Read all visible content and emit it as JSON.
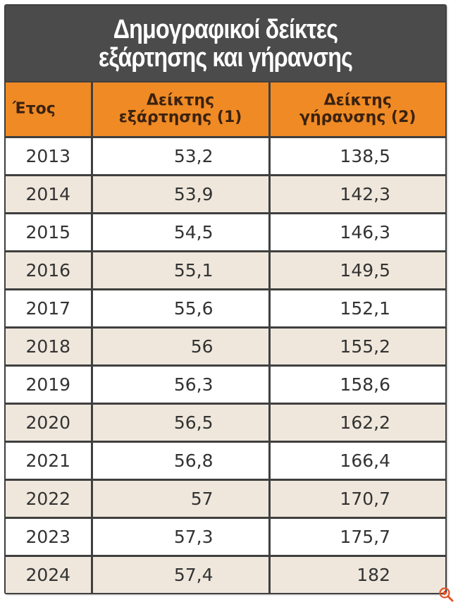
{
  "title": {
    "line1": "Δημογραφικοί δείκτες",
    "line2": "εξάρτησης και γήρανσης"
  },
  "table": {
    "headers": [
      "Έτος",
      "Δείκτης εξάρτησης (1)",
      "Δείκτης γήρανσης (2)"
    ],
    "header_lines": {
      "col2_line1": "Δείκτης",
      "col2_line2": "εξάρτησης (1)",
      "col3_line1": "Δείκτης",
      "col3_line2": "γήρανσης (2)"
    },
    "rows": [
      {
        "year": "2013",
        "dependency": "53,2",
        "ageing": "138,5"
      },
      {
        "year": "2014",
        "dependency": "53,9",
        "ageing": "142,3"
      },
      {
        "year": "2015",
        "dependency": "54,5",
        "ageing": "146,3"
      },
      {
        "year": "2016",
        "dependency": "55,1",
        "ageing": "149,5"
      },
      {
        "year": "2017",
        "dependency": "55,6",
        "ageing": "152,1"
      },
      {
        "year": "2018",
        "dependency": "56",
        "ageing": "155,2"
      },
      {
        "year": "2019",
        "dependency": "56,3",
        "ageing": "158,6"
      },
      {
        "year": "2020",
        "dependency": "56,5",
        "ageing": "162,2"
      },
      {
        "year": "2021",
        "dependency": "56,8",
        "ageing": "166,4"
      },
      {
        "year": "2022",
        "dependency": "57",
        "ageing": "170,7"
      },
      {
        "year": "2023",
        "dependency": "57,3",
        "ageing": "175,7"
      },
      {
        "year": "2024",
        "dependency": "57,4",
        "ageing": "182"
      }
    ]
  },
  "colors": {
    "title_bg": "#4b4b4b",
    "header_bg": "#f08a24",
    "row_alt_bg": "#efe7dc",
    "border": "#3f3f3f",
    "zoom_icon": "#e0562a"
  },
  "icons": {
    "zoom": "zoom-in-icon"
  },
  "chart_data": {
    "type": "table",
    "title": "Δημογραφικοί δείκτες εξάρτησης και γήρανσης",
    "columns": [
      "Έτος",
      "Δείκτης εξάρτησης (1)",
      "Δείκτης γήρανσης (2)"
    ],
    "categories": [
      "2013",
      "2014",
      "2015",
      "2016",
      "2017",
      "2018",
      "2019",
      "2020",
      "2021",
      "2022",
      "2023",
      "2024"
    ],
    "series": [
      {
        "name": "Δείκτης εξάρτησης (1)",
        "values": [
          53.2,
          53.9,
          54.5,
          55.1,
          55.6,
          56,
          56.3,
          56.5,
          56.8,
          57,
          57.3,
          57.4
        ]
      },
      {
        "name": "Δείκτης γήρανσης (2)",
        "values": [
          138.5,
          142.3,
          146.3,
          149.5,
          152.1,
          155.2,
          158.6,
          162.2,
          166.4,
          170.7,
          175.7,
          182
        ]
      }
    ]
  }
}
